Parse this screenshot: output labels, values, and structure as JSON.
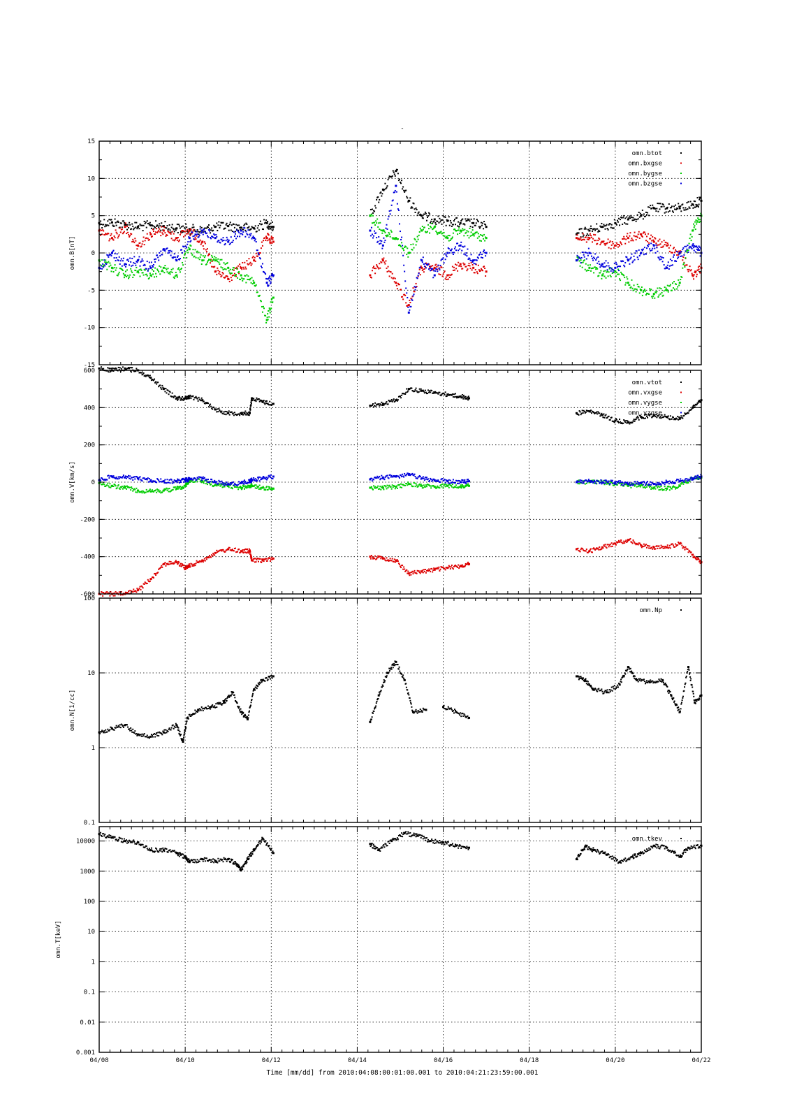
{
  "page": {
    "title": "-"
  },
  "footer": {
    "time_label": "Time [mm/dd]  from 2010:04:08:00:01:00.001  to  2010:04:21:23:59:00.001"
  },
  "colors": {
    "black": "#000000",
    "red": "#dd0000",
    "green": "#00cc00",
    "blue": "#0000dd"
  },
  "chart_data": [
    {
      "type": "scatter",
      "id": "panel-b",
      "ylabel": "omn.B[nT]",
      "yscale": "linear",
      "ylim": [
        -15,
        15
      ],
      "yticks": [
        -15,
        -10,
        -5,
        0,
        5,
        10,
        15
      ],
      "ytick_labels": [
        "-15",
        "-10",
        "-5",
        "0",
        "5",
        "10",
        "15"
      ],
      "xlim": [
        "04/08",
        "04/22"
      ],
      "xticks": [
        "04/08",
        "04/10",
        "04/12",
        "04/14",
        "04/16",
        "04/18",
        "04/20",
        "04/22"
      ],
      "grid": true,
      "legend_position": "top-right",
      "series": [
        {
          "name": "omn.btot",
          "color": "#000000",
          "x": [
            0.0,
            0.3,
            0.6,
            0.9,
            1.2,
            1.5,
            1.8,
            2.1,
            2.4,
            2.7,
            3.0,
            3.3,
            3.6,
            3.9,
            4.05,
            6.3,
            6.6,
            6.9,
            7.2,
            7.5,
            7.8,
            8.1,
            8.4,
            8.7,
            9.0,
            11.1,
            11.4,
            11.7,
            12.0,
            12.3,
            12.6,
            12.9,
            13.2,
            13.5,
            13.8,
            14.0
          ],
          "y": [
            4.0,
            4.1,
            3.8,
            3.5,
            3.7,
            3.6,
            3.3,
            3.2,
            3.0,
            3.5,
            3.6,
            3.4,
            3.3,
            4.0,
            3.5,
            5.0,
            8.5,
            11.0,
            7.0,
            5.0,
            4.5,
            4.3,
            4.0,
            4.0,
            3.5,
            2.5,
            3.0,
            3.5,
            4.0,
            4.5,
            5.0,
            6.0,
            6.0,
            6.0,
            6.5,
            7.0
          ]
        },
        {
          "name": "omn.bxgse",
          "color": "#dd0000",
          "x": [
            0.0,
            0.3,
            0.6,
            0.9,
            1.2,
            1.5,
            1.8,
            2.1,
            2.4,
            2.7,
            3.0,
            3.3,
            3.6,
            3.9,
            4.05,
            6.3,
            6.6,
            6.9,
            7.2,
            7.5,
            7.8,
            8.1,
            8.4,
            8.7,
            9.0,
            11.1,
            11.4,
            11.7,
            12.0,
            12.3,
            12.6,
            12.9,
            13.2,
            13.5,
            13.8,
            14.0
          ],
          "y": [
            3.0,
            2.0,
            3.5,
            1.0,
            2.5,
            3.0,
            2.0,
            3.0,
            1.5,
            -2.5,
            -3.5,
            -2.0,
            -1.0,
            2.0,
            1.5,
            -3.0,
            -1.0,
            -4.0,
            -7.0,
            -2.0,
            -2.0,
            -3.0,
            -1.5,
            -2.0,
            -2.5,
            2.0,
            2.0,
            1.5,
            1.0,
            2.0,
            2.5,
            1.5,
            1.0,
            0.0,
            -3.0,
            -2.0
          ]
        },
        {
          "name": "omn.bygse",
          "color": "#00cc00",
          "x": [
            0.0,
            0.3,
            0.6,
            0.9,
            1.2,
            1.5,
            1.8,
            2.1,
            2.4,
            2.7,
            3.0,
            3.3,
            3.6,
            3.9,
            4.05,
            6.3,
            6.6,
            6.9,
            7.2,
            7.5,
            7.8,
            8.1,
            8.4,
            8.7,
            9.0,
            11.1,
            11.4,
            11.7,
            12.0,
            12.3,
            12.6,
            12.9,
            13.2,
            13.5,
            13.8,
            14.0
          ],
          "y": [
            -1.0,
            -2.0,
            -3.0,
            -2.5,
            -3.0,
            -2.0,
            -3.0,
            0.5,
            -1.0,
            -1.0,
            -2.0,
            -3.0,
            -4.0,
            -9.0,
            -6.0,
            5.0,
            3.0,
            2.0,
            0.0,
            3.0,
            3.5,
            2.0,
            3.0,
            2.5,
            2.0,
            -1.0,
            -2.0,
            -3.0,
            -2.5,
            -4.0,
            -5.0,
            -5.5,
            -5.0,
            -4.0,
            3.0,
            5.0
          ]
        },
        {
          "name": "omn.bzgse",
          "color": "#0000dd",
          "x": [
            0.0,
            0.3,
            0.6,
            0.9,
            1.2,
            1.5,
            1.8,
            2.1,
            2.4,
            2.7,
            3.0,
            3.3,
            3.6,
            3.9,
            4.05,
            6.3,
            6.6,
            6.9,
            7.2,
            7.5,
            7.8,
            8.1,
            8.4,
            8.7,
            9.0,
            11.1,
            11.4,
            11.7,
            12.0,
            12.3,
            12.6,
            12.9,
            13.2,
            13.5,
            13.8,
            14.0
          ],
          "y": [
            -2.0,
            0.0,
            -1.5,
            -1.0,
            -2.0,
            0.5,
            -1.0,
            2.0,
            3.0,
            2.0,
            1.5,
            3.0,
            2.0,
            -4.0,
            -3.0,
            3.0,
            1.0,
            9.0,
            -8.0,
            -1.0,
            -3.0,
            0.0,
            1.0,
            -1.0,
            0.0,
            -1.0,
            0.0,
            -1.5,
            -2.0,
            -1.0,
            0.0,
            1.0,
            -2.0,
            0.0,
            1.0,
            0.0
          ]
        }
      ]
    },
    {
      "type": "scatter",
      "id": "panel-v",
      "ylabel": "omn.V[km/s]",
      "yscale": "linear",
      "ylim": [
        -600,
        600
      ],
      "yticks": [
        -600,
        -400,
        -200,
        0,
        200,
        400,
        600
      ],
      "ytick_labels": [
        "-600",
        "-400",
        "-200",
        "0",
        "200",
        "400",
        "600"
      ],
      "xlim": [
        "04/08",
        "04/22"
      ],
      "xticks": [
        "04/08",
        "04/10",
        "04/12",
        "04/14",
        "04/16",
        "04/18",
        "04/20",
        "04/22"
      ],
      "grid": true,
      "legend_position": "top-right",
      "series": [
        {
          "name": "omn.vtot",
          "color": "#000000",
          "x": [
            0.0,
            0.3,
            0.6,
            0.9,
            1.2,
            1.5,
            1.8,
            2.0,
            2.1,
            2.4,
            2.7,
            3.0,
            3.3,
            3.5,
            3.55,
            3.8,
            4.05,
            6.3,
            6.6,
            6.9,
            7.2,
            7.5,
            7.8,
            8.1,
            8.4,
            8.6,
            11.1,
            11.4,
            11.7,
            12.0,
            12.3,
            12.6,
            12.9,
            13.2,
            13.5,
            13.8,
            14.0
          ],
          "y": [
            610,
            600,
            610,
            600,
            560,
            500,
            450,
            450,
            460,
            440,
            390,
            370,
            370,
            370,
            450,
            430,
            420,
            410,
            420,
            440,
            500,
            490,
            480,
            470,
            460,
            450,
            370,
            380,
            360,
            330,
            320,
            350,
            360,
            350,
            340,
            400,
            440
          ]
        },
        {
          "name": "omn.vxgse",
          "color": "#dd0000",
          "x": [
            0.0,
            0.3,
            0.6,
            0.9,
            1.2,
            1.5,
            1.8,
            2.0,
            2.1,
            2.4,
            2.7,
            3.0,
            3.3,
            3.5,
            3.55,
            3.8,
            4.05,
            6.3,
            6.6,
            6.9,
            7.2,
            7.5,
            7.8,
            8.1,
            8.4,
            8.6,
            11.1,
            11.4,
            11.7,
            12.0,
            12.3,
            12.6,
            12.9,
            13.2,
            13.5,
            13.8,
            14.0
          ],
          "y": [
            -600,
            -610,
            -600,
            -580,
            -520,
            -440,
            -430,
            -460,
            -450,
            -420,
            -380,
            -360,
            -370,
            -370,
            -420,
            -420,
            -410,
            -400,
            -410,
            -420,
            -490,
            -480,
            -470,
            -460,
            -450,
            -440,
            -360,
            -370,
            -350,
            -330,
            -310,
            -340,
            -350,
            -350,
            -330,
            -390,
            -430
          ]
        },
        {
          "name": "omn.vygse",
          "color": "#00cc00",
          "x": [
            0.0,
            0.3,
            0.6,
            0.9,
            1.2,
            1.5,
            1.8,
            2.0,
            2.1,
            2.4,
            2.7,
            3.0,
            3.3,
            3.5,
            3.55,
            3.8,
            4.05,
            6.3,
            6.6,
            6.9,
            7.2,
            7.5,
            7.8,
            8.1,
            8.4,
            8.6,
            11.1,
            11.4,
            11.7,
            12.0,
            12.3,
            12.6,
            12.9,
            13.2,
            13.5,
            13.8,
            14.0
          ],
          "y": [
            -5,
            -20,
            -30,
            -45,
            -50,
            -45,
            -35,
            -20,
            10,
            5,
            -15,
            -20,
            -30,
            -20,
            -20,
            -30,
            -35,
            -30,
            -30,
            -25,
            -10,
            -20,
            -25,
            -20,
            -25,
            -20,
            0,
            0,
            0,
            -10,
            -20,
            -15,
            -30,
            -35,
            -20,
            20,
            25
          ]
        },
        {
          "name": "omn.vzgse",
          "color": "#0000dd",
          "x": [
            0.0,
            0.3,
            0.6,
            0.9,
            1.2,
            1.5,
            1.8,
            2.0,
            2.1,
            2.4,
            2.7,
            3.0,
            3.3,
            3.5,
            3.55,
            3.8,
            4.05,
            6.3,
            6.6,
            6.9,
            7.2,
            7.5,
            7.8,
            8.1,
            8.4,
            8.6,
            11.1,
            11.4,
            11.7,
            12.0,
            12.3,
            12.6,
            12.9,
            13.2,
            13.5,
            13.8,
            14.0
          ],
          "y": [
            10,
            30,
            25,
            20,
            10,
            5,
            5,
            10,
            15,
            20,
            0,
            -10,
            -5,
            5,
            10,
            20,
            30,
            15,
            25,
            30,
            40,
            20,
            10,
            5,
            0,
            5,
            0,
            5,
            0,
            0,
            -10,
            -5,
            -10,
            0,
            5,
            20,
            30
          ]
        }
      ]
    },
    {
      "type": "scatter",
      "id": "panel-n",
      "ylabel": "omn.N[1/cc]",
      "yscale": "log",
      "ylim": [
        0.1,
        100
      ],
      "yticks": [
        0.1,
        1,
        10,
        100
      ],
      "ytick_labels": [
        "0.1",
        "1",
        "10",
        "100"
      ],
      "xlim": [
        "04/08",
        "04/22"
      ],
      "xticks": [
        "04/08",
        "04/10",
        "04/12",
        "04/14",
        "04/16",
        "04/18",
        "04/20",
        "04/22"
      ],
      "grid": true,
      "legend_position": "top-right",
      "series": [
        {
          "name": "omn.Np",
          "color": "#000000",
          "x": [
            0.0,
            0.3,
            0.6,
            0.9,
            1.2,
            1.5,
            1.8,
            1.95,
            2.05,
            2.3,
            2.6,
            2.9,
            3.1,
            3.3,
            3.45,
            3.6,
            3.8,
            4.05,
            6.3,
            6.5,
            6.7,
            6.9,
            7.1,
            7.3,
            7.6,
            8.0,
            8.3,
            8.6,
            11.1,
            11.3,
            11.5,
            11.8,
            12.1,
            12.3,
            12.5,
            12.8,
            13.1,
            13.3,
            13.5,
            13.7,
            13.85,
            14.0
          ],
          "y": [
            1.6,
            1.8,
            2.0,
            1.5,
            1.4,
            1.6,
            2.0,
            1.2,
            2.5,
            3.2,
            3.5,
            4.0,
            5.5,
            3.0,
            2.4,
            6.0,
            8.0,
            9.0,
            2.2,
            5.0,
            10.0,
            14.0,
            8.0,
            3.0,
            3.2,
            3.5,
            3.0,
            2.5,
            9.0,
            8.0,
            6.0,
            5.5,
            7.0,
            12.0,
            8.0,
            7.5,
            8.0,
            5.0,
            3.0,
            12.0,
            4.0,
            5.0
          ]
        }
      ]
    },
    {
      "type": "scatter",
      "id": "panel-t",
      "ylabel": "omn.T[keV]",
      "yscale": "log",
      "ylim": [
        0.001,
        30000
      ],
      "yticks": [
        0.001,
        0.01,
        0.1,
        1,
        10,
        100,
        1000,
        10000
      ],
      "ytick_labels": [
        "0.001",
        "0.01",
        "0.1",
        "1",
        "10",
        "100",
        "1000",
        "10000"
      ],
      "xlim": [
        "04/08",
        "04/22"
      ],
      "xticks": [
        "04/08",
        "04/10",
        "04/12",
        "04/14",
        "04/16",
        "04/18",
        "04/20",
        "04/22"
      ],
      "grid": true,
      "legend_position": "top-right",
      "series": [
        {
          "name": "omn.tkev",
          "color": "#000000",
          "x": [
            0.0,
            0.3,
            0.6,
            0.9,
            1.2,
            1.5,
            1.8,
            2.0,
            2.1,
            2.4,
            2.7,
            3.0,
            3.2,
            3.3,
            3.45,
            3.6,
            3.8,
            4.05,
            6.3,
            6.5,
            6.8,
            7.1,
            7.4,
            7.7,
            8.0,
            8.3,
            8.6,
            11.1,
            11.3,
            11.5,
            11.8,
            12.1,
            12.4,
            12.6,
            12.9,
            13.2,
            13.5,
            13.7,
            14.0
          ],
          "y": [
            17000,
            13000,
            10000,
            9000,
            5000,
            5000,
            4000,
            3000,
            2000,
            2500,
            2200,
            2500,
            1700,
            1100,
            2500,
            5000,
            12000,
            4000,
            8000,
            5000,
            10000,
            18000,
            15000,
            10000,
            9000,
            7000,
            6000,
            2500,
            6500,
            5000,
            3500,
            2000,
            3000,
            4000,
            7000,
            6000,
            3000,
            6000,
            7000
          ]
        }
      ]
    }
  ]
}
